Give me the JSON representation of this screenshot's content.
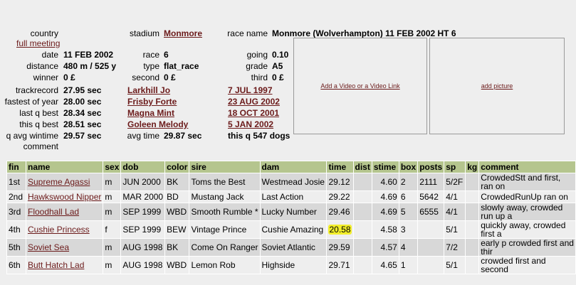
{
  "meta": {
    "country_label": "country",
    "full_meeting": "full meeting",
    "stadium_label": "stadium",
    "stadium": "Monmore",
    "race_name_label": "race name",
    "race_name": "Monmore (Wolverhampton) 11 FEB 2002 HT 6",
    "date_label": "date",
    "date": "11 FEB 2002",
    "race_label": "race",
    "race": "6",
    "going_label": "going",
    "going": "0.10",
    "distance_label": "distance",
    "distance": "480 m / 525 y",
    "type_label": "type",
    "type": "flat_race",
    "grade_label": "grade",
    "grade": "A5",
    "winner_label": "winner",
    "winner": "0 £",
    "second_label": "second",
    "second": "0 £",
    "third_label": "third",
    "third": "0 £",
    "trackrecord_label": "trackrecord",
    "trackrecord": "27.95 sec",
    "trackrecord_dog": "Larkhill Jo",
    "trackrecord_date": "7 JUL 1997",
    "fastest_label": "fastest of year",
    "fastest": "28.00 sec",
    "fastest_dog": "Frisby Forte",
    "fastest_date": "23 AUG 2002",
    "lastq_label": "last q best",
    "lastq": "28.34 sec",
    "lastq_dog": "Magna Mint",
    "lastq_date": "18 OCT 2001",
    "thisq_label": "this q best",
    "thisq": "28.51 sec",
    "thisq_dog": "Goleen Melody",
    "thisq_date": "5 JAN 2002",
    "qavg_label": "q avg wintime",
    "qavg": "29.57 sec",
    "avgtime_label": "avg time",
    "avgtime": "29.87 sec",
    "thisq_dogs": "this q 547 dogs",
    "comment_label": "comment"
  },
  "media": {
    "video_link": "Add a Video or a Video Link",
    "picture_link": "add picture"
  },
  "table": {
    "headers": [
      "fin",
      "name",
      "sex",
      "dob",
      "color",
      "sire",
      "dam",
      "time",
      "dist",
      "stime",
      "box",
      "posts",
      "sp",
      "kg",
      "comment"
    ],
    "rows": [
      {
        "fin": "1st",
        "name": "Supreme Agassi",
        "sex": "m",
        "dob": "JUN 2000",
        "color": "BK",
        "sire": "Toms the Best",
        "dam": "Westmead Josie",
        "time": "29.12",
        "dist": "",
        "stime": "4.60",
        "box": "2",
        "posts": "2111",
        "sp": "5/2F",
        "kg": "",
        "comment": "CrowdedStt and first, ran on"
      },
      {
        "fin": "2nd",
        "name": "Hawkswood Nipper",
        "sex": "m",
        "dob": "MAR 2000",
        "color": "BD",
        "sire": "Mustang Jack",
        "dam": "Last Action",
        "time": "29.22",
        "dist": "",
        "stime": "4.69",
        "box": "6",
        "posts": "5642",
        "sp": "4/1",
        "kg": "",
        "comment": "CrowdedRunUp ran on"
      },
      {
        "fin": "3rd",
        "name": "Floodhall Lad",
        "sex": "m",
        "dob": "SEP 1999",
        "color": "WBD",
        "sire": "Smooth Rumble *",
        "dam": "Lucky Number",
        "time": "29.46",
        "dist": "",
        "stime": "4.69",
        "box": "5",
        "posts": "6555",
        "sp": "4/1",
        "kg": "",
        "comment": "slowly away, crowded run up a"
      },
      {
        "fin": "4th",
        "name": "Cushie Princess",
        "sex": "f",
        "dob": "SEP 1999",
        "color": "BEW",
        "sire": "Vintage Prince",
        "dam": "Cushie Amazing",
        "time": "20.58",
        "dist": "",
        "stime": "4.58",
        "box": "3",
        "posts": "",
        "sp": "5/1",
        "kg": "",
        "comment": "quickly away, crowded first a"
      },
      {
        "fin": "5th",
        "name": "Soviet Sea",
        "sex": "m",
        "dob": "AUG 1998",
        "color": "BK",
        "sire": "Come On Ranger",
        "dam": "Soviet Atlantic",
        "time": "29.59",
        "dist": "",
        "stime": "4.57",
        "box": "4",
        "posts": "",
        "sp": "7/2",
        "kg": "",
        "comment": "early p crowded first and thir"
      },
      {
        "fin": "6th",
        "name": "Butt Hatch Lad",
        "sex": "m",
        "dob": "AUG 1998",
        "color": "WBD",
        "sire": "Lemon Rob",
        "dam": "Highside",
        "time": "29.71",
        "dist": "",
        "stime": "4.65",
        "box": "1",
        "posts": "",
        "sp": "5/1",
        "kg": "",
        "comment": "crowded first and second"
      }
    ]
  },
  "colors": {
    "header_bg": "#b5c58e",
    "link": "#6b1a1a",
    "highlight": "#f2ee2a"
  }
}
